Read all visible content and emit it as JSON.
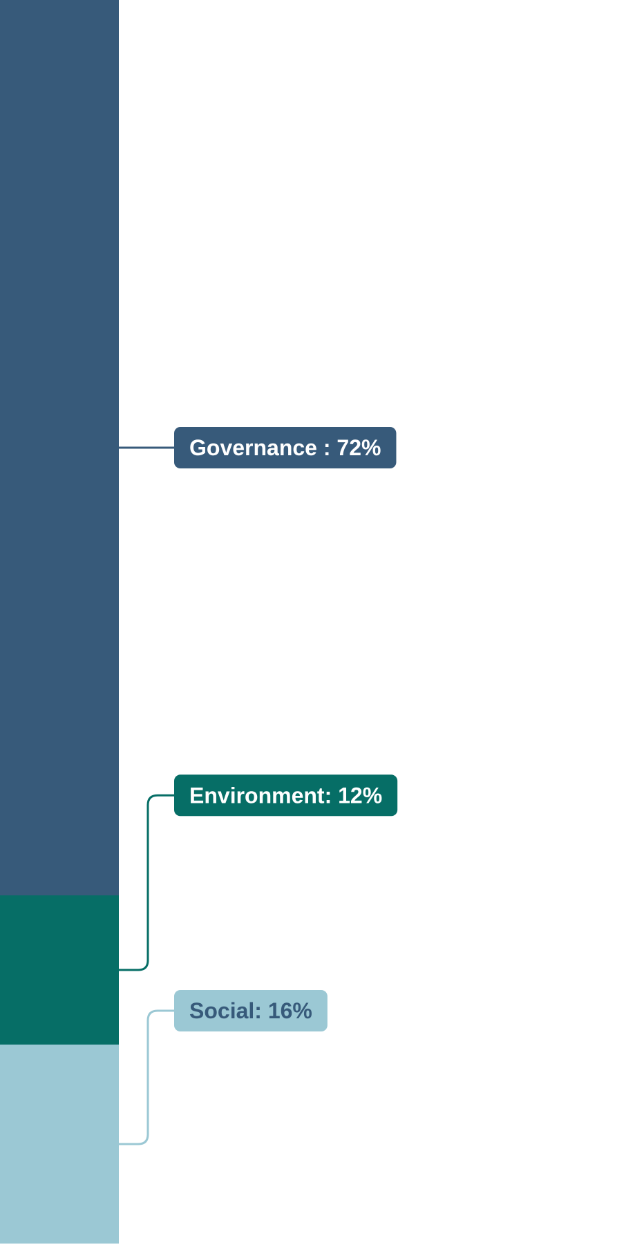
{
  "chart_data": {
    "type": "bar",
    "subtype": "stacked-100",
    "categories": [
      ""
    ],
    "series": [
      {
        "name": "Governance",
        "values": [
          72
        ],
        "color": "#375a7a",
        "label": "Governance : 72%",
        "label_text_color": "#ffffff"
      },
      {
        "name": "Environment",
        "values": [
          12
        ],
        "color": "#066e66",
        "label": "Environment: 12%",
        "label_text_color": "#ffffff"
      },
      {
        "name": "Social",
        "values": [
          16
        ],
        "color": "#9bc8d4",
        "label": "Social: 16%",
        "label_text_color": "#375a7a"
      }
    ],
    "ylim": [
      0,
      100
    ],
    "stack_order_top_to_bottom": [
      "Governance",
      "Environment",
      "Social"
    ],
    "grid": false,
    "legend": "none"
  }
}
